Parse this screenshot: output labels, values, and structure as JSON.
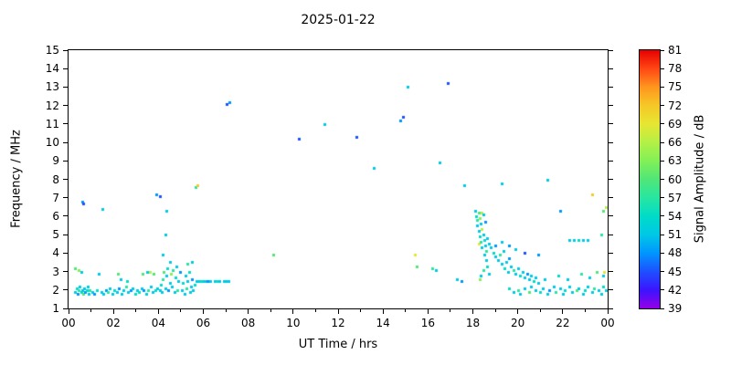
{
  "page": {
    "background": "#ffffff",
    "text_color": "#000000"
  },
  "chart_data": {
    "type": "scatter",
    "title": "2025-01-22",
    "xlabel": "UT Time / hrs",
    "ylabel": "Frequency / MHz",
    "xlim": [
      0,
      24
    ],
    "ylim": [
      1,
      15
    ],
    "grid": false,
    "marker": {
      "shape": "square",
      "size": 3
    },
    "x_ticks": {
      "values": [
        0,
        2,
        4,
        6,
        8,
        10,
        12,
        14,
        16,
        18,
        20,
        22,
        24
      ],
      "labels": [
        "00",
        "02",
        "04",
        "06",
        "08",
        "10",
        "12",
        "14",
        "16",
        "18",
        "20",
        "22",
        "00"
      ]
    },
    "x_minor_ticks": [
      1,
      3,
      5,
      7,
      9,
      11,
      13,
      15,
      17,
      19,
      21,
      23
    ],
    "y_ticks": {
      "values": [
        1,
        2,
        3,
        4,
        5,
        6,
        7,
        8,
        9,
        10,
        11,
        12,
        13,
        14,
        15
      ],
      "labels": [
        "1",
        "2",
        "3",
        "4",
        "5",
        "6",
        "7",
        "8",
        "9",
        "10",
        "11",
        "12",
        "13",
        "14",
        "15"
      ]
    },
    "colorbar": {
      "label": "Signal Amplitude / dB",
      "min": 39,
      "max": 81,
      "ticks": [
        39,
        42,
        45,
        48,
        51,
        54,
        57,
        60,
        63,
        66,
        69,
        72,
        75,
        78,
        81
      ],
      "stops": [
        {
          "value": 39,
          "color": "#9400e6"
        },
        {
          "value": 42,
          "color": "#3c14ff"
        },
        {
          "value": 45,
          "color": "#1e50ff"
        },
        {
          "value": 48,
          "color": "#0096ff"
        },
        {
          "value": 51,
          "color": "#00c8e6"
        },
        {
          "value": 54,
          "color": "#00dcc8"
        },
        {
          "value": 57,
          "color": "#28e6a0"
        },
        {
          "value": 60,
          "color": "#50e678"
        },
        {
          "value": 63,
          "color": "#82f056"
        },
        {
          "value": 66,
          "color": "#b4f046"
        },
        {
          "value": 69,
          "color": "#e6e632"
        },
        {
          "value": 72,
          "color": "#f5c828"
        },
        {
          "value": 75,
          "color": "#ff961e"
        },
        {
          "value": 78,
          "color": "#ff4614"
        },
        {
          "value": 81,
          "color": "#e60000"
        }
      ]
    },
    "points": [
      [
        0.3,
        1.9,
        51
      ],
      [
        0.35,
        2.1,
        54
      ],
      [
        0.4,
        1.8,
        48
      ],
      [
        0.45,
        2.0,
        57
      ],
      [
        0.5,
        2.2,
        51
      ],
      [
        0.55,
        1.9,
        54
      ],
      [
        0.6,
        2.0,
        51
      ],
      [
        0.65,
        1.8,
        60
      ],
      [
        0.7,
        2.1,
        51
      ],
      [
        0.75,
        1.9,
        48
      ],
      [
        0.8,
        2.0,
        54
      ],
      [
        0.85,
        2.2,
        51
      ],
      [
        0.9,
        1.8,
        51
      ],
      [
        0.95,
        2.0,
        57
      ],
      [
        0.3,
        3.2,
        60
      ],
      [
        0.45,
        3.1,
        63
      ],
      [
        0.55,
        3.0,
        51
      ],
      [
        0.6,
        6.8,
        48
      ],
      [
        0.65,
        6.7,
        45
      ],
      [
        1.05,
        1.9,
        51
      ],
      [
        1.15,
        1.8,
        48
      ],
      [
        1.25,
        2.0,
        54
      ],
      [
        1.35,
        2.9,
        51
      ],
      [
        1.45,
        1.9,
        51
      ],
      [
        1.5,
        6.4,
        51
      ],
      [
        1.55,
        1.8,
        51
      ],
      [
        1.65,
        2.0,
        48
      ],
      [
        1.75,
        1.9,
        57
      ],
      [
        1.85,
        2.1,
        51
      ],
      [
        1.95,
        1.8,
        51
      ],
      [
        2.05,
        2.0,
        54
      ],
      [
        2.15,
        1.9,
        51
      ],
      [
        2.2,
        2.9,
        60
      ],
      [
        2.25,
        2.1,
        48
      ],
      [
        2.3,
        2.6,
        51
      ],
      [
        2.35,
        1.8,
        51
      ],
      [
        2.45,
        2.0,
        51
      ],
      [
        2.55,
        2.2,
        57
      ],
      [
        2.6,
        2.5,
        54
      ],
      [
        2.65,
        1.9,
        51
      ],
      [
        2.75,
        2.0,
        48
      ],
      [
        2.85,
        2.1,
        51
      ],
      [
        2.95,
        1.8,
        54
      ],
      [
        3.05,
        2.0,
        51
      ],
      [
        3.15,
        1.9,
        54
      ],
      [
        3.25,
        2.1,
        51
      ],
      [
        3.3,
        2.9,
        60
      ],
      [
        3.35,
        2.0,
        48
      ],
      [
        3.45,
        1.8,
        51
      ],
      [
        3.5,
        3.0,
        51
      ],
      [
        3.55,
        2.0,
        57
      ],
      [
        3.6,
        3.0,
        66
      ],
      [
        3.65,
        2.2,
        51
      ],
      [
        3.75,
        1.9,
        51
      ],
      [
        3.8,
        2.9,
        60
      ],
      [
        3.85,
        2.0,
        54
      ],
      [
        3.9,
        7.2,
        48
      ],
      [
        3.95,
        2.1,
        51
      ],
      [
        4.05,
        7.1,
        45
      ],
      [
        4.05,
        2.0,
        51
      ],
      [
        4.1,
        2.3,
        54
      ],
      [
        4.15,
        1.9,
        51
      ],
      [
        4.2,
        2.6,
        57
      ],
      [
        4.2,
        3.9,
        51
      ],
      [
        4.25,
        3.0,
        60
      ],
      [
        4.3,
        2.1,
        51
      ],
      [
        4.3,
        5.0,
        51
      ],
      [
        4.35,
        2.8,
        51
      ],
      [
        4.35,
        6.3,
        51
      ],
      [
        4.4,
        3.2,
        54
      ],
      [
        4.45,
        2.0,
        48
      ],
      [
        4.5,
        2.4,
        51
      ],
      [
        4.5,
        3.5,
        51
      ],
      [
        4.55,
        2.9,
        63
      ],
      [
        4.6,
        2.2,
        51
      ],
      [
        4.65,
        3.1,
        57
      ],
      [
        4.7,
        1.9,
        51
      ],
      [
        4.75,
        2.7,
        54
      ],
      [
        4.8,
        3.3,
        51
      ],
      [
        4.85,
        2.0,
        57
      ],
      [
        4.9,
        2.5,
        51
      ],
      [
        4.95,
        3.0,
        48
      ],
      [
        5.05,
        2.0,
        51
      ],
      [
        5.1,
        2.4,
        54
      ],
      [
        5.15,
        1.8,
        51
      ],
      [
        5.2,
        2.8,
        51
      ],
      [
        5.25,
        2.1,
        57
      ],
      [
        5.3,
        2.5,
        51
      ],
      [
        5.3,
        3.4,
        57
      ],
      [
        5.35,
        3.0,
        54
      ],
      [
        5.4,
        1.9,
        51
      ],
      [
        5.45,
        2.2,
        51
      ],
      [
        5.5,
        2.6,
        48
      ],
      [
        5.5,
        3.5,
        51
      ],
      [
        5.55,
        2.0,
        51
      ],
      [
        5.6,
        2.3,
        54
      ],
      [
        5.65,
        7.6,
        57
      ],
      [
        5.75,
        7.7,
        72
      ],
      [
        5.7,
        2.5,
        51
      ],
      [
        5.8,
        2.5,
        51
      ],
      [
        5.9,
        2.5,
        54
      ],
      [
        6.0,
        2.5,
        51
      ],
      [
        6.1,
        2.5,
        51
      ],
      [
        6.2,
        2.5,
        48
      ],
      [
        6.3,
        2.5,
        51
      ],
      [
        6.5,
        2.5,
        51
      ],
      [
        6.6,
        2.5,
        54
      ],
      [
        6.7,
        2.5,
        51
      ],
      [
        6.9,
        2.5,
        51
      ],
      [
        7.0,
        2.5,
        51
      ],
      [
        7.1,
        2.5,
        51
      ],
      [
        7.05,
        12.1,
        45
      ],
      [
        7.15,
        12.2,
        48
      ],
      [
        9.1,
        3.9,
        60
      ],
      [
        10.25,
        10.2,
        45
      ],
      [
        11.4,
        11.0,
        51
      ],
      [
        12.8,
        10.3,
        45
      ],
      [
        13.6,
        8.6,
        51
      ],
      [
        14.75,
        11.2,
        48
      ],
      [
        14.9,
        11.4,
        45
      ],
      [
        15.1,
        13.0,
        51
      ],
      [
        15.4,
        3.9,
        69
      ],
      [
        15.5,
        3.3,
        60
      ],
      [
        16.2,
        3.2,
        57
      ],
      [
        16.35,
        3.1,
        51
      ],
      [
        16.5,
        8.9,
        51
      ],
      [
        16.9,
        13.2,
        45
      ],
      [
        17.3,
        2.6,
        51
      ],
      [
        17.5,
        2.5,
        48
      ],
      [
        17.6,
        7.7,
        51
      ],
      [
        18.1,
        6.3,
        51
      ],
      [
        18.15,
        6.0,
        54
      ],
      [
        18.2,
        5.8,
        57
      ],
      [
        18.2,
        5.5,
        51
      ],
      [
        18.25,
        6.2,
        60
      ],
      [
        18.25,
        5.2,
        51
      ],
      [
        18.25,
        4.5,
        69
      ],
      [
        18.3,
        4.9,
        54
      ],
      [
        18.3,
        5.9,
        63
      ],
      [
        18.3,
        2.6,
        63
      ],
      [
        18.35,
        5.6,
        51
      ],
      [
        18.35,
        4.6,
        57
      ],
      [
        18.35,
        2.8,
        51
      ],
      [
        18.4,
        5.3,
        66
      ],
      [
        18.4,
        4.3,
        51
      ],
      [
        18.4,
        6.2,
        66
      ],
      [
        18.45,
        5.0,
        51
      ],
      [
        18.45,
        6.1,
        51
      ],
      [
        18.45,
        3.1,
        57
      ],
      [
        18.5,
        4.7,
        54
      ],
      [
        18.5,
        3.9,
        51
      ],
      [
        18.55,
        4.4,
        51
      ],
      [
        18.55,
        5.7,
        48
      ],
      [
        18.6,
        4.1,
        57
      ],
      [
        18.6,
        3.6,
        51
      ],
      [
        18.65,
        4.8,
        51
      ],
      [
        18.65,
        3.3,
        54
      ],
      [
        18.7,
        4.5,
        51
      ],
      [
        18.7,
        2.9,
        51
      ],
      [
        18.8,
        4.3,
        51
      ],
      [
        18.9,
        4.0,
        54
      ],
      [
        19.0,
        3.8,
        51
      ],
      [
        19.0,
        4.4,
        48
      ],
      [
        19.1,
        3.6,
        51
      ],
      [
        19.2,
        3.9,
        57
      ],
      [
        19.3,
        3.4,
        51
      ],
      [
        19.3,
        4.6,
        51
      ],
      [
        19.3,
        7.8,
        51
      ],
      [
        19.35,
        4.1,
        51
      ],
      [
        19.4,
        3.2,
        54
      ],
      [
        19.5,
        3.5,
        51
      ],
      [
        19.55,
        3.0,
        51
      ],
      [
        19.6,
        3.7,
        48
      ],
      [
        19.6,
        4.4,
        48
      ],
      [
        19.7,
        3.3,
        51
      ],
      [
        19.8,
        3.1,
        57
      ],
      [
        19.9,
        2.9,
        51
      ],
      [
        19.9,
        4.2,
        51
      ],
      [
        20.0,
        3.2,
        51
      ],
      [
        20.1,
        2.8,
        54
      ],
      [
        20.2,
        3.0,
        51
      ],
      [
        20.3,
        2.7,
        51
      ],
      [
        20.3,
        4.0,
        45
      ],
      [
        20.4,
        2.9,
        48
      ],
      [
        20.5,
        2.6,
        51
      ],
      [
        20.6,
        2.8,
        51
      ],
      [
        20.7,
        2.5,
        54
      ],
      [
        20.8,
        2.7,
        51
      ],
      [
        20.9,
        2.4,
        51
      ],
      [
        20.9,
        3.9,
        48
      ],
      [
        21.3,
        8.0,
        51
      ],
      [
        21.9,
        6.3,
        48
      ],
      [
        19.6,
        2.1,
        54
      ],
      [
        19.8,
        1.9,
        51
      ],
      [
        20.0,
        2.0,
        57
      ],
      [
        20.1,
        1.8,
        51
      ],
      [
        20.3,
        2.1,
        51
      ],
      [
        20.5,
        1.9,
        60
      ],
      [
        20.6,
        2.2,
        51
      ],
      [
        20.8,
        2.0,
        51
      ],
      [
        21.0,
        1.9,
        54
      ],
      [
        21.1,
        2.1,
        51
      ],
      [
        21.2,
        2.6,
        51
      ],
      [
        21.3,
        1.8,
        51
      ],
      [
        21.4,
        2.0,
        48
      ],
      [
        21.6,
        2.2,
        51
      ],
      [
        21.7,
        1.9,
        57
      ],
      [
        21.8,
        2.8,
        54
      ],
      [
        21.9,
        2.1,
        51
      ],
      [
        22.0,
        1.8,
        51
      ],
      [
        22.1,
        2.0,
        54
      ],
      [
        22.2,
        2.6,
        51
      ],
      [
        22.3,
        2.2,
        51
      ],
      [
        22.4,
        1.9,
        51
      ],
      [
        22.6,
        2.0,
        60
      ],
      [
        22.7,
        2.1,
        51
      ],
      [
        22.8,
        2.9,
        57
      ],
      [
        22.9,
        1.8,
        51
      ],
      [
        23.0,
        2.0,
        54
      ],
      [
        23.1,
        2.2,
        51
      ],
      [
        23.2,
        2.7,
        51
      ],
      [
        23.3,
        1.9,
        51
      ],
      [
        23.4,
        2.1,
        57
      ],
      [
        23.5,
        3.0,
        60
      ],
      [
        23.6,
        2.0,
        51
      ],
      [
        23.7,
        1.8,
        51
      ],
      [
        23.8,
        2.2,
        54
      ],
      [
        23.8,
        2.8,
        51
      ],
      [
        23.85,
        3.0,
        69
      ],
      [
        23.9,
        2.0,
        51
      ],
      [
        22.3,
        4.7,
        51
      ],
      [
        22.5,
        4.7,
        51
      ],
      [
        22.7,
        4.7,
        54
      ],
      [
        22.9,
        4.7,
        51
      ],
      [
        23.1,
        4.7,
        51
      ],
      [
        23.3,
        7.2,
        72
      ],
      [
        23.7,
        5.0,
        57
      ],
      [
        23.8,
        6.3,
        60
      ],
      [
        23.9,
        6.5,
        66
      ]
    ]
  }
}
